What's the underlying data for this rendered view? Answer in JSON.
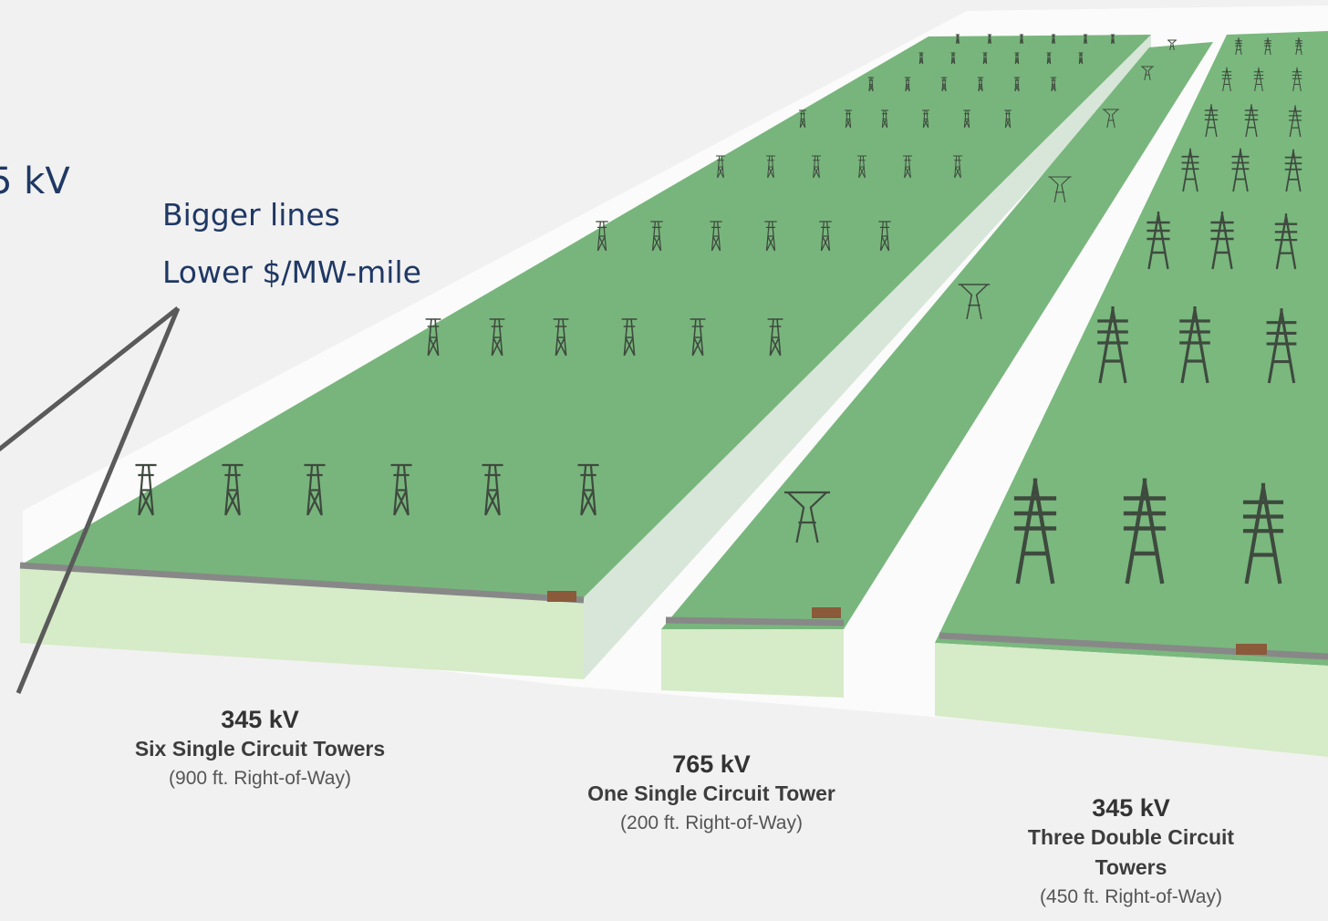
{
  "partial_heading": "5 kV",
  "callout": {
    "line1": "Bigger lines",
    "line2": "Lower $/MW-mile"
  },
  "corridors": [
    {
      "voltage": "345 kV",
      "desc": "Six Single Circuit Towers",
      "row": "(900 ft. Right-of-Way)"
    },
    {
      "voltage": "765 kV",
      "desc": "One Single Circuit Tower",
      "row": "(200 ft. Right-of-Way)"
    },
    {
      "voltage": "345 kV",
      "desc_line1": "Three Double Circuit",
      "desc_line2": "Towers",
      "row": "(450 ft. Right-of-Way)"
    }
  ],
  "colors": {
    "ground_green": "#7db87f",
    "ground_edge": "#d8ecc8",
    "white_border": "#fafafa",
    "road": "#8a8a8a",
    "tower": "#3e4a3e",
    "text_blue": "#1f3864",
    "pointer": "#5a5a5a"
  }
}
